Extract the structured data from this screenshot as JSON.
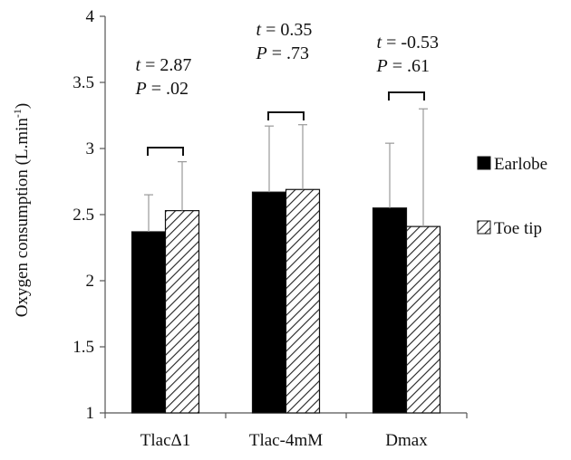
{
  "chart_data": {
    "type": "bar",
    "title": "",
    "xlabel": "",
    "ylabel": "Oxygen consumption (L.min",
    "ylabel_superscript": "-1",
    "ylabel_close": ")",
    "ylim": [
      1,
      4
    ],
    "yticks": [
      1,
      1.5,
      2,
      2.5,
      3,
      3.5,
      4
    ],
    "ytick_labels": [
      "1",
      "1.5",
      "2",
      "2.5",
      "3",
      "3.5",
      "4"
    ],
    "grid": false,
    "legend_position": "right",
    "categories": [
      "TlacΔ1",
      "Tlac-4mM",
      "Dmax"
    ],
    "series": [
      {
        "name": "Earlobe",
        "values": [
          2.37,
          2.67,
          2.55
        ],
        "error": [
          0.28,
          0.5,
          0.49
        ],
        "color": "#000000",
        "pattern": "solid"
      },
      {
        "name": "Toe tip",
        "values": [
          2.53,
          2.69,
          2.41
        ],
        "error": [
          0.37,
          0.49,
          0.89
        ],
        "color": "#ffffff",
        "pattern": "diagonal-hatch"
      }
    ],
    "annotations": [
      {
        "category": "TlacΔ1",
        "t_label": "t",
        "t_value": " = 2.87",
        "p_label": "P",
        "p_value": " = .02"
      },
      {
        "category": "Tlac-4mM",
        "t_label": "t",
        "t_value": " = 0.35",
        "p_label": "P",
        "p_value": " = .73"
      },
      {
        "category": "Dmax",
        "t_label": "t",
        "t_value": " = -0.53",
        "p_label": "P",
        "p_value": " = .61"
      }
    ]
  }
}
